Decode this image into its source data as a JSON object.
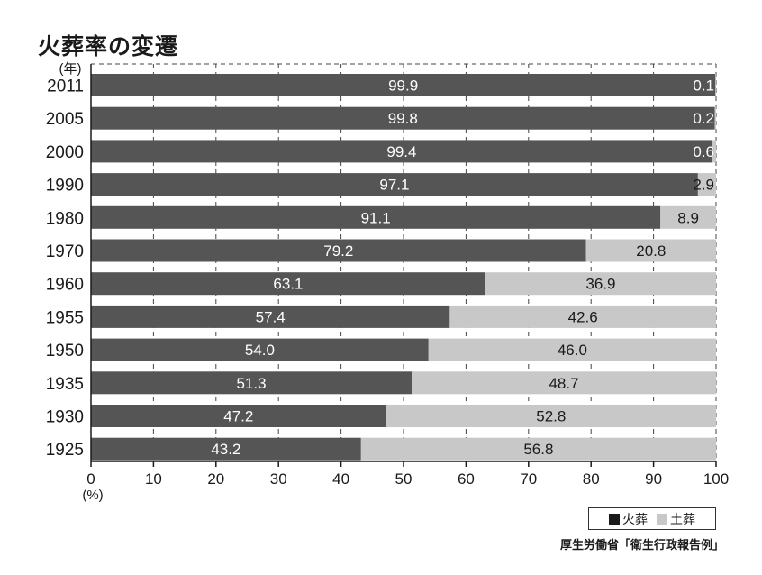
{
  "title": "火葬率の変遷",
  "source": "厚生労働省「衛生行政報告例」",
  "legend": {
    "cremation": "火葬",
    "burial": "土葬"
  },
  "colors": {
    "cremation": "#555555",
    "burial": "#c8c8c8",
    "grid": "#444444"
  },
  "chart_data": {
    "type": "bar",
    "orientation": "horizontal",
    "stacked": true,
    "title": "火葬率の変遷",
    "ylabel": "(年)",
    "xlabel": "(%)",
    "xlim": [
      0,
      100
    ],
    "xticks": [
      0,
      10,
      20,
      30,
      40,
      50,
      60,
      70,
      80,
      90,
      100
    ],
    "grid": true,
    "categories": [
      "2011",
      "2005",
      "2000",
      "1990",
      "1980",
      "1970",
      "1960",
      "1955",
      "1950",
      "1935",
      "1930",
      "1925"
    ],
    "series": [
      {
        "name": "火葬",
        "values": [
          99.9,
          99.8,
          99.4,
          97.1,
          91.1,
          79.2,
          63.1,
          57.4,
          54.0,
          51.3,
          47.2,
          43.2
        ],
        "labels": [
          "99.9",
          "99.8",
          "99.4",
          "97.1",
          "91.1",
          "79.2",
          "63.1",
          "57.4",
          "54.0",
          "51.3",
          "47.2",
          "43.2"
        ]
      },
      {
        "name": "土葬",
        "values": [
          0.1,
          0.2,
          0.6,
          2.9,
          8.9,
          20.8,
          36.9,
          42.6,
          46.0,
          48.7,
          52.8,
          56.8
        ],
        "labels": [
          "0.1",
          "0.2",
          "0.6",
          "2.9",
          "8.9",
          "20.8",
          "36.9",
          "42.6",
          "46.0",
          "48.7",
          "52.8",
          "56.8"
        ]
      }
    ],
    "legend_position": "bottom-right"
  }
}
